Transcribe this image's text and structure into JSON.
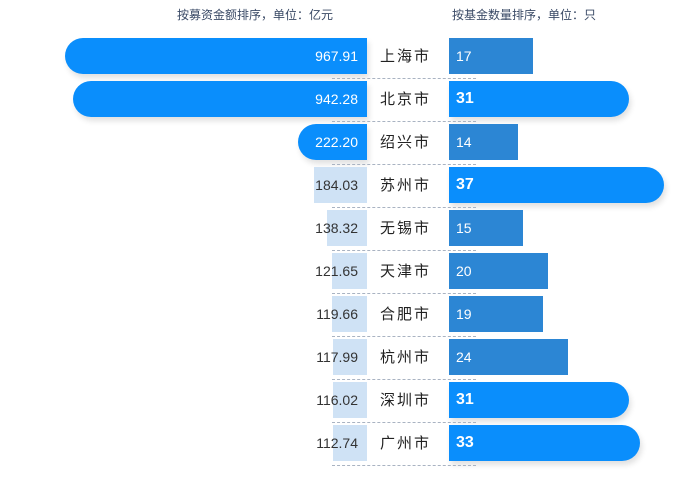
{
  "chart_data": {
    "type": "bar",
    "left_title": "按募资金额排序，单位：亿元",
    "right_title": "按基金数量排序，单位：只",
    "categories": [
      "上海市",
      "北京市",
      "绍兴市",
      "苏州市",
      "无锡市",
      "天津市",
      "合肥市",
      "杭州市",
      "深圳市",
      "广州市"
    ],
    "series": [
      {
        "name": "募资金额（亿元）",
        "values": [
          "967.91",
          "942.28",
          "222.20",
          "184.03",
          "138.32",
          "121.65",
          "119.66",
          "117.99",
          "116.02",
          "112.74"
        ]
      },
      {
        "name": "基金数量（只）",
        "values": [
          "17",
          "31",
          "14",
          "37",
          "15",
          "20",
          "19",
          "24",
          "31",
          "33"
        ]
      }
    ]
  },
  "colors": {
    "highlight": "#0a8efc",
    "pale": "#cfe2f5",
    "medium": "#2c86d4"
  }
}
